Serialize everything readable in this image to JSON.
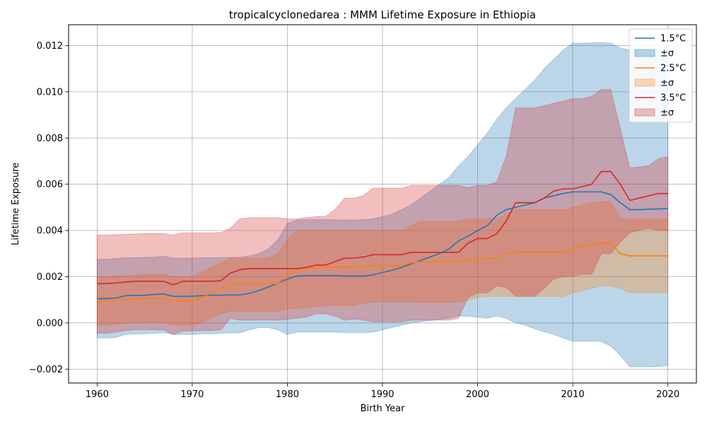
{
  "chart_data": {
    "type": "line",
    "title": "tropicalcyclonedarea : MMM Lifetime Exposure in Ethiopia",
    "xlabel": "Birth Year",
    "ylabel": "Lifetime Exposure",
    "xlim": [
      1957,
      2023
    ],
    "ylim": [
      -0.0026,
      0.0129
    ],
    "xticks": [
      1960,
      1970,
      1980,
      1990,
      2000,
      2010,
      2020
    ],
    "yticks": [
      -0.002,
      0.0,
      0.002,
      0.004,
      0.006,
      0.008,
      0.01,
      0.012
    ],
    "xtick_labels": [
      "1960",
      "1970",
      "1980",
      "1990",
      "2000",
      "2010",
      "2020"
    ],
    "ytick_labels": [
      "−0.002",
      "0.000",
      "0.002",
      "0.004",
      "0.006",
      "0.008",
      "0.010",
      "0.012"
    ],
    "grid": true,
    "legend_position": "top-right",
    "x": [
      1960,
      1961,
      1962,
      1963,
      1964,
      1965,
      1966,
      1967,
      1968,
      1969,
      1970,
      1971,
      1972,
      1973,
      1974,
      1975,
      1976,
      1977,
      1978,
      1979,
      1980,
      1981,
      1982,
      1983,
      1984,
      1985,
      1986,
      1987,
      1988,
      1989,
      1990,
      1991,
      1992,
      1993,
      1994,
      1995,
      1996,
      1997,
      1998,
      1999,
      2000,
      2001,
      2002,
      2003,
      2004,
      2005,
      2006,
      2007,
      2008,
      2009,
      2010,
      2011,
      2012,
      2013,
      2014,
      2015,
      2016,
      2017,
      2018,
      2019,
      2020
    ],
    "series": [
      {
        "name": "1.5°C",
        "band_label": "±σ",
        "color": "#1f77b4",
        "fill": "#1f77b4",
        "mean": [
          0.00105,
          0.00105,
          0.00108,
          0.00118,
          0.00119,
          0.0012,
          0.00123,
          0.00125,
          0.00115,
          0.00115,
          0.00115,
          0.00118,
          0.0012,
          0.0012,
          0.00121,
          0.00121,
          0.00128,
          0.0014,
          0.00155,
          0.00172,
          0.0019,
          0.00203,
          0.00205,
          0.00205,
          0.00205,
          0.00205,
          0.00203,
          0.00203,
          0.00203,
          0.00208,
          0.00218,
          0.00228,
          0.0024,
          0.00255,
          0.0027,
          0.00285,
          0.003,
          0.0032,
          0.00355,
          0.00375,
          0.004,
          0.0042,
          0.00465,
          0.0049,
          0.005,
          0.0051,
          0.0052,
          0.0054,
          0.0055,
          0.0056,
          0.00567,
          0.00567,
          0.00567,
          0.00567,
          0.00555,
          0.0052,
          0.0049,
          0.0049,
          0.00492,
          0.00493,
          0.00495
        ],
        "upper": [
          0.00275,
          0.00275,
          0.00278,
          0.00282,
          0.00282,
          0.00283,
          0.00285,
          0.00288,
          0.0028,
          0.0028,
          0.0028,
          0.00282,
          0.00282,
          0.00282,
          0.00283,
          0.00284,
          0.0029,
          0.003,
          0.0032,
          0.0036,
          0.0043,
          0.00445,
          0.00447,
          0.00447,
          0.00447,
          0.00446,
          0.00445,
          0.00445,
          0.00447,
          0.0045,
          0.0046,
          0.0047,
          0.0049,
          0.0051,
          0.0054,
          0.0057,
          0.006,
          0.0063,
          0.0068,
          0.0072,
          0.0077,
          0.0082,
          0.0088,
          0.0093,
          0.0097,
          0.0101,
          0.0105,
          0.011,
          0.0114,
          0.0118,
          0.0121,
          0.0121,
          0.01212,
          0.01213,
          0.0121,
          0.0119,
          0.0118,
          0.0118,
          0.0118,
          0.0118,
          0.0118
        ],
        "lower": [
          -0.00065,
          -0.00065,
          -0.00063,
          -0.0005,
          -0.00048,
          -0.00047,
          -0.00045,
          -0.00042,
          -0.0005,
          -0.0005,
          -0.0005,
          -0.00047,
          -0.00047,
          -0.00045,
          -0.00043,
          -0.00043,
          -0.0003,
          -0.0002,
          -0.0002,
          -0.0003,
          -0.0005,
          -0.0004,
          -0.0004,
          -0.0004,
          -0.0004,
          -0.0004,
          -0.00042,
          -0.00042,
          -0.00042,
          -0.0004,
          -0.0003,
          -0.0002,
          -0.0001,
          0.0,
          5e-05,
          0.0001,
          0.00015,
          0.0002,
          0.0003,
          0.00028,
          0.00025,
          0.0002,
          0.0003,
          0.0002,
          0.0,
          -0.0001,
          -0.00025,
          -0.00038,
          -0.0005,
          -0.00065,
          -0.0008,
          -0.0008,
          -0.0008,
          -0.0008,
          -0.001,
          -0.0014,
          -0.0019,
          -0.0019,
          -0.0019,
          -0.00188,
          -0.00185
        ]
      },
      {
        "name": "2.5°C",
        "band_label": "±σ",
        "color": "#ff7f0e",
        "fill": "#ff7f0e",
        "mean": [
          0.00095,
          0.00095,
          0.001,
          0.00103,
          0.00105,
          0.00107,
          0.00107,
          0.00108,
          0.00095,
          0.00095,
          0.00095,
          0.0011,
          0.0013,
          0.0015,
          0.0017,
          0.0017,
          0.0017,
          0.0017,
          0.0017,
          0.0017,
          0.0021,
          0.0023,
          0.00235,
          0.0024,
          0.00242,
          0.00242,
          0.00242,
          0.00242,
          0.00245,
          0.00248,
          0.00248,
          0.00248,
          0.00248,
          0.0026,
          0.00265,
          0.00265,
          0.00265,
          0.00265,
          0.00265,
          0.0027,
          0.00275,
          0.0028,
          0.0028,
          0.003,
          0.00305,
          0.00305,
          0.00305,
          0.00305,
          0.00305,
          0.00305,
          0.0032,
          0.0033,
          0.0034,
          0.00345,
          0.00345,
          0.003,
          0.0029,
          0.0029,
          0.0029,
          0.0029,
          0.0029
        ],
        "upper": [
          0.002,
          0.002,
          0.00203,
          0.00205,
          0.00207,
          0.0021,
          0.0021,
          0.0021,
          0.002,
          0.002,
          0.002,
          0.0022,
          0.0024,
          0.0026,
          0.0028,
          0.0028,
          0.0028,
          0.0028,
          0.0028,
          0.003,
          0.0036,
          0.004,
          0.004,
          0.004,
          0.004,
          0.004,
          0.004,
          0.004,
          0.004,
          0.004,
          0.004,
          0.004,
          0.004,
          0.0042,
          0.0044,
          0.0044,
          0.0044,
          0.0044,
          0.0044,
          0.0045,
          0.0045,
          0.0045,
          0.0045,
          0.0047,
          0.0049,
          0.0049,
          0.0049,
          0.0049,
          0.0049,
          0.0049,
          0.005,
          0.0051,
          0.0052,
          0.00525,
          0.00525,
          0.0045,
          0.0045,
          0.0045,
          0.0045,
          0.0045,
          0.0045
        ],
        "lower": [
          -0.0001,
          -0.0001,
          -5e-05,
          0.0,
          0.0,
          2e-05,
          2e-05,
          2e-05,
          -0.0001,
          -0.0001,
          -0.0001,
          0.0,
          0.0002,
          0.0004,
          0.0005,
          0.0005,
          0.0005,
          0.0005,
          0.0005,
          0.0005,
          0.0006,
          0.00065,
          0.00065,
          0.0007,
          0.00075,
          0.00075,
          0.00075,
          0.00075,
          0.00085,
          0.0009,
          0.0009,
          0.0009,
          0.0009,
          0.0009,
          0.00088,
          0.00088,
          0.00088,
          0.00088,
          0.0009,
          0.001,
          0.0011,
          0.00115,
          0.00115,
          0.00115,
          0.00115,
          0.00115,
          0.00115,
          0.00115,
          0.00115,
          0.00115,
          0.0013,
          0.0014,
          0.0015,
          0.0016,
          0.0016,
          0.0015,
          0.0013,
          0.0013,
          0.0013,
          0.0013,
          0.0013
        ]
      },
      {
        "name": "3.5°C",
        "band_label": "±σ",
        "color": "#d62728",
        "fill": "#d62728",
        "mean": [
          0.0017,
          0.0017,
          0.00173,
          0.00177,
          0.0018,
          0.0018,
          0.0018,
          0.0018,
          0.00165,
          0.0018,
          0.0018,
          0.0018,
          0.0018,
          0.00182,
          0.00215,
          0.0023,
          0.00235,
          0.00235,
          0.00235,
          0.00235,
          0.00235,
          0.00235,
          0.0024,
          0.0025,
          0.0025,
          0.00265,
          0.0028,
          0.0028,
          0.00285,
          0.00295,
          0.00295,
          0.00295,
          0.00295,
          0.00305,
          0.00305,
          0.00305,
          0.00305,
          0.00305,
          0.00305,
          0.00345,
          0.00365,
          0.00365,
          0.00385,
          0.0044,
          0.0052,
          0.0052,
          0.0052,
          0.0054,
          0.0057,
          0.0058,
          0.0058,
          0.0059,
          0.006,
          0.00655,
          0.00655,
          0.006,
          0.0053,
          0.0054,
          0.0055,
          0.0056,
          0.0056
        ],
        "upper": [
          0.0038,
          0.0038,
          0.00382,
          0.00383,
          0.00385,
          0.00387,
          0.00387,
          0.00387,
          0.0038,
          0.0039,
          0.0039,
          0.0039,
          0.0039,
          0.0039,
          0.0041,
          0.0045,
          0.00455,
          0.00455,
          0.00455,
          0.00455,
          0.0045,
          0.0045,
          0.00455,
          0.0046,
          0.0046,
          0.0049,
          0.0054,
          0.0054,
          0.0055,
          0.00583,
          0.00583,
          0.00583,
          0.00583,
          0.00595,
          0.00595,
          0.00595,
          0.00595,
          0.00595,
          0.00595,
          0.00585,
          0.00595,
          0.00595,
          0.0061,
          0.0072,
          0.0093,
          0.0093,
          0.0093,
          0.0094,
          0.0095,
          0.0096,
          0.0097,
          0.0097,
          0.0098,
          0.0101,
          0.0101,
          0.0084,
          0.0067,
          0.00675,
          0.0068,
          0.0071,
          0.0072
        ],
        "lower": [
          -0.00045,
          -0.00045,
          -0.0004,
          -0.00033,
          -0.0003,
          -0.0003,
          -0.0003,
          -0.0003,
          -0.0005,
          -0.00035,
          -0.00035,
          -0.00033,
          -0.00033,
          -0.0003,
          0.0002,
          0.00012,
          0.00012,
          0.00012,
          0.00012,
          0.00012,
          0.00015,
          0.0002,
          0.00025,
          0.0004,
          0.0004,
          0.0003,
          0.00012,
          0.00017,
          0.00012,
          5e-05,
          5e-05,
          5e-05,
          5e-05,
          0.00012,
          0.00012,
          0.00012,
          0.00012,
          0.00012,
          0.0002,
          0.0011,
          0.0013,
          0.0013,
          0.0016,
          0.00155,
          0.00115,
          0.00115,
          0.00115,
          0.0015,
          0.0019,
          0.002,
          0.002,
          0.0021,
          0.0021,
          0.003,
          0.003,
          0.0035,
          0.0039,
          0.004,
          0.0041,
          0.004,
          0.004
        ]
      }
    ]
  }
}
